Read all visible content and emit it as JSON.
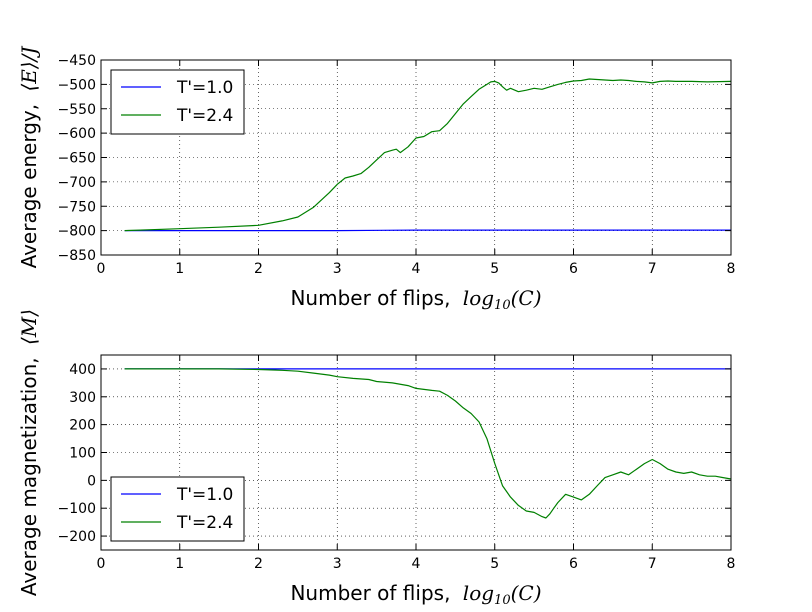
{
  "chart_data": [
    {
      "type": "line",
      "xlabel": "Number of flips,",
      "xlabel_math": "log10(C)",
      "ylabel": "Average energy,",
      "ylabel_math": "⟨E⟩/J",
      "xlim": [
        0,
        8
      ],
      "ylim": [
        -850,
        -450
      ],
      "xticks": [
        0,
        1,
        2,
        3,
        4,
        5,
        6,
        7,
        8
      ],
      "yticks": [
        -850,
        -800,
        -750,
        -700,
        -650,
        -600,
        -550,
        -500,
        -450
      ],
      "grid": true,
      "legend_position": "top-left",
      "series": [
        {
          "name": "T'=1.0",
          "color": "#0000ff",
          "x": [
            0.3,
            1,
            2,
            3,
            4,
            5,
            6,
            7,
            8
          ],
          "y": [
            -800,
            -800,
            -800,
            -800,
            -799,
            -799,
            -799,
            -799,
            -799
          ]
        },
        {
          "name": "T'=2.4",
          "color": "#008000",
          "x": [
            0.3,
            0.5,
            1.0,
            1.5,
            2.0,
            2.3,
            2.5,
            2.7,
            2.9,
            3.0,
            3.1,
            3.2,
            3.3,
            3.4,
            3.5,
            3.6,
            3.7,
            3.75,
            3.8,
            3.9,
            4.0,
            4.1,
            4.2,
            4.3,
            4.4,
            4.5,
            4.6,
            4.7,
            4.8,
            4.9,
            4.95,
            5.0,
            5.05,
            5.1,
            5.15,
            5.2,
            5.3,
            5.4,
            5.5,
            5.6,
            5.7,
            5.8,
            5.9,
            6.0,
            6.1,
            6.2,
            6.3,
            6.4,
            6.5,
            6.6,
            6.7,
            6.8,
            6.9,
            7.0,
            7.1,
            7.2,
            7.3,
            7.5,
            7.7,
            8.0
          ],
          "y": [
            -800,
            -799,
            -796,
            -793,
            -789,
            -780,
            -772,
            -752,
            -722,
            -705,
            -692,
            -688,
            -683,
            -670,
            -655,
            -640,
            -635,
            -633,
            -640,
            -628,
            -610,
            -607,
            -597,
            -595,
            -580,
            -560,
            -540,
            -525,
            -510,
            -500,
            -495,
            -494,
            -497,
            -505,
            -512,
            -508,
            -515,
            -512,
            -508,
            -510,
            -505,
            -500,
            -496,
            -493,
            -492,
            -489,
            -490,
            -491,
            -492,
            -491,
            -492,
            -494,
            -495,
            -497,
            -494,
            -493,
            -494,
            -494,
            -495,
            -494
          ]
        }
      ]
    },
    {
      "type": "line",
      "xlabel": "Number of flips,",
      "xlabel_math": "log10(C)",
      "ylabel": "Average magnetization,",
      "ylabel_math": "⟨M⟩",
      "xlim": [
        0,
        8
      ],
      "ylim": [
        -250,
        450
      ],
      "xticks": [
        0,
        1,
        2,
        3,
        4,
        5,
        6,
        7,
        8
      ],
      "yticks": [
        -200,
        -100,
        0,
        100,
        200,
        300,
        400
      ],
      "grid": true,
      "legend_position": "bottom-left",
      "series": [
        {
          "name": "T'=1.0",
          "color": "#0000ff",
          "x": [
            0.3,
            1,
            2,
            3,
            4,
            5,
            6,
            7,
            8
          ],
          "y": [
            400,
            400,
            400,
            400,
            400,
            400,
            400,
            400,
            400
          ]
        },
        {
          "name": "T'=2.4",
          "color": "#008000",
          "x": [
            0.3,
            1.0,
            1.5,
            2.0,
            2.3,
            2.5,
            2.7,
            2.9,
            3.0,
            3.2,
            3.4,
            3.5,
            3.7,
            3.9,
            4.0,
            4.2,
            4.3,
            4.4,
            4.5,
            4.6,
            4.7,
            4.8,
            4.9,
            5.0,
            5.1,
            5.2,
            5.3,
            5.4,
            5.5,
            5.6,
            5.65,
            5.7,
            5.75,
            5.8,
            5.9,
            6.0,
            6.1,
            6.2,
            6.3,
            6.4,
            6.5,
            6.6,
            6.7,
            6.8,
            6.9,
            7.0,
            7.1,
            7.2,
            7.3,
            7.4,
            7.5,
            7.6,
            7.7,
            7.8,
            7.9,
            8.0
          ],
          "y": [
            400,
            400,
            400,
            398,
            395,
            392,
            385,
            378,
            372,
            366,
            362,
            355,
            350,
            340,
            330,
            323,
            320,
            305,
            285,
            260,
            240,
            210,
            150,
            60,
            -20,
            -60,
            -90,
            -110,
            -115,
            -130,
            -135,
            -120,
            -100,
            -80,
            -50,
            -60,
            -70,
            -50,
            -20,
            10,
            20,
            30,
            20,
            40,
            60,
            75,
            60,
            40,
            30,
            25,
            30,
            20,
            15,
            15,
            10,
            5
          ]
        }
      ]
    }
  ]
}
